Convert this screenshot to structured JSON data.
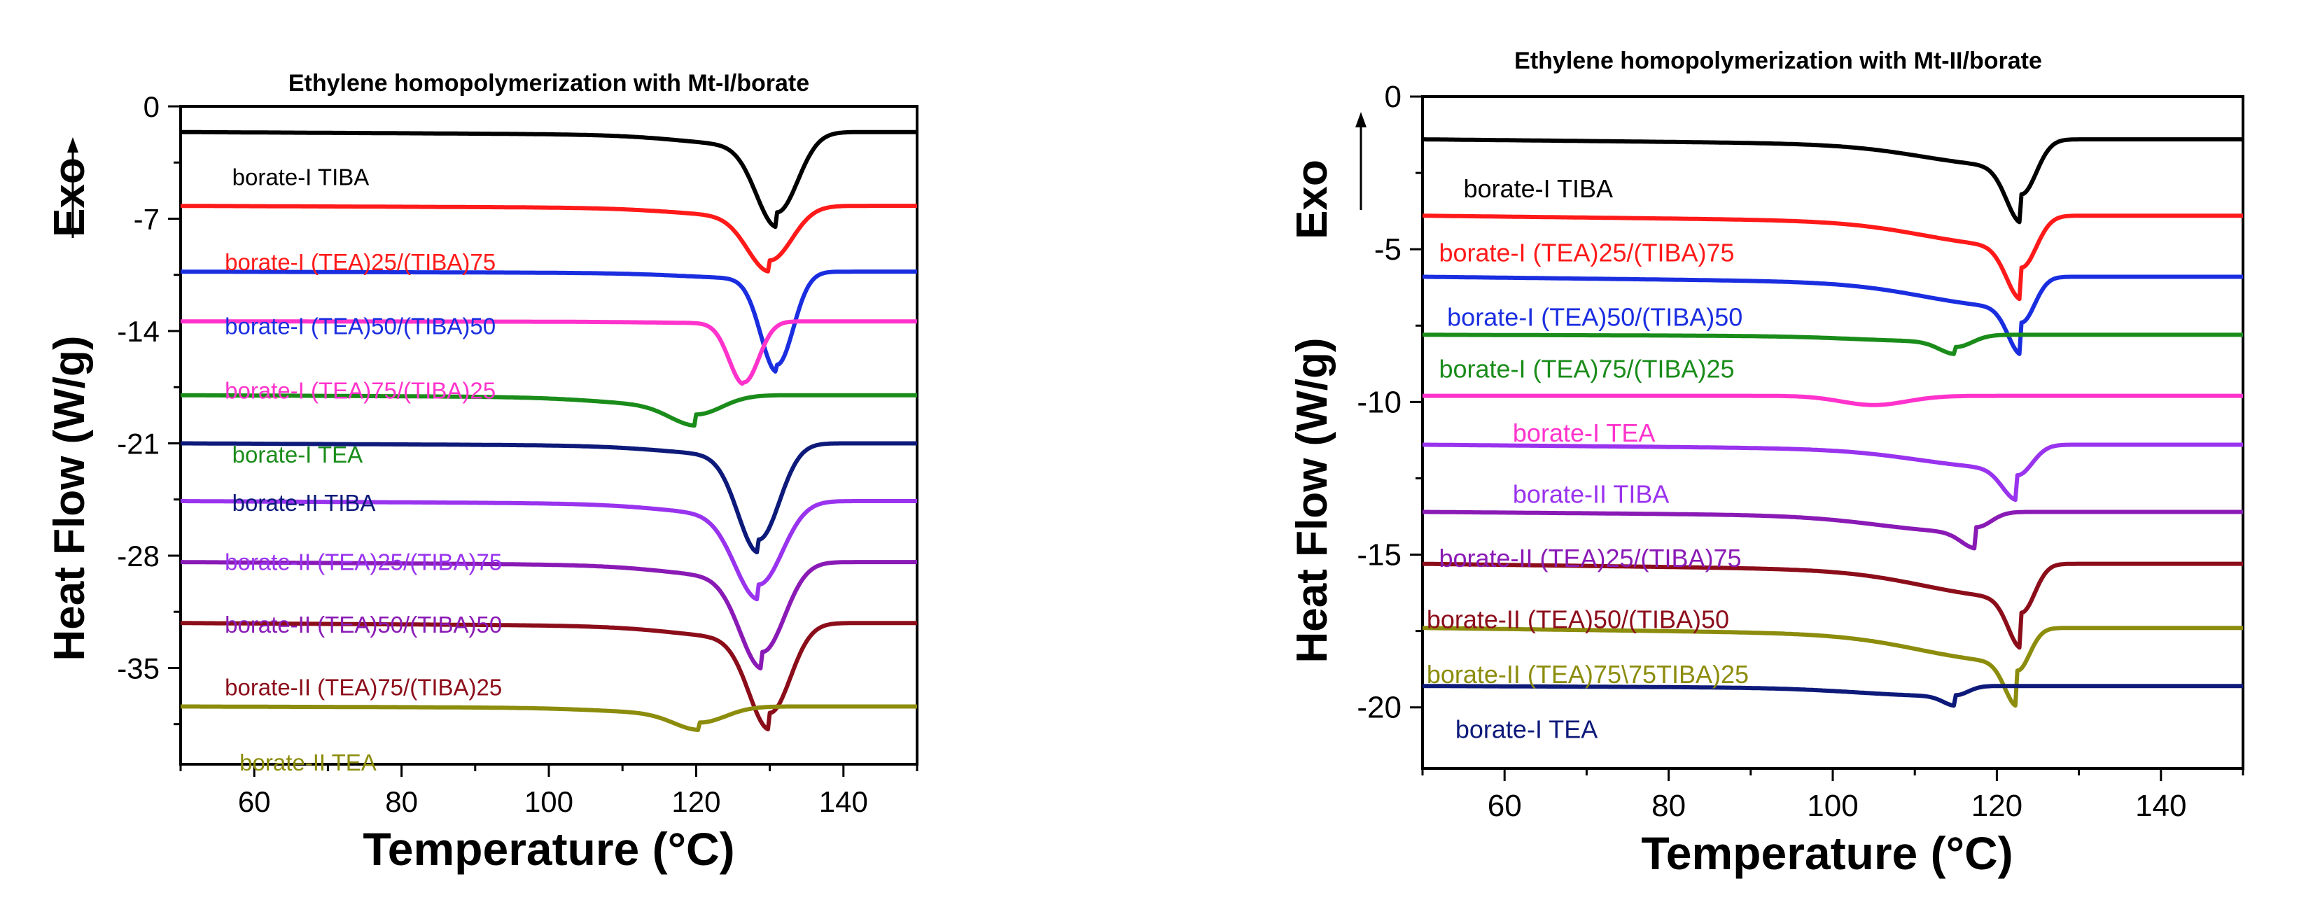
{
  "chart_data": [
    {
      "type": "line",
      "title": "Ethylene homopolymerization with Mt-I/borate",
      "xlabel": "Temperature (°C)",
      "ylabel": "Heat Flow (W/g)",
      "ylabel_exo": "Exo",
      "xlim": [
        50,
        150
      ],
      "ylim": [
        -41,
        0
      ],
      "xticks": [
        60,
        80,
        100,
        120,
        140
      ],
      "yticks": [
        0,
        -7,
        -14,
        -21,
        -28,
        -35
      ],
      "xtick_labels": [
        "60",
        "80",
        "100",
        "120",
        "140"
      ],
      "ytick_labels": [
        "0",
        "-7",
        "-14",
        "-21",
        "-28",
        "-35"
      ],
      "series": [
        {
          "name": "borate-I TIBA",
          "color": "#000000",
          "baseline": -1.6,
          "dip_center": 131,
          "dip_depth": 5.0,
          "dip_width": 2.8,
          "step": 0.8,
          "label_x": 57,
          "label_y": -4.9
        },
        {
          "name": "borate-I (TEA)25/(TIBA)75",
          "color": "#ff1a1a",
          "baseline": -6.2,
          "dip_center": 130,
          "dip_depth": 3.4,
          "dip_width": 3.0,
          "step": 0.6,
          "label_x": 56,
          "label_y": -10.2
        },
        {
          "name": "borate-I (TEA)50/(TIBA)50",
          "color": "#1a2ee0",
          "baseline": -10.3,
          "dip_center": 131,
          "dip_depth": 5.8,
          "dip_width": 2.2,
          "step": 0.4,
          "label_x": 56,
          "label_y": -14.2
        },
        {
          "name": "borate-I (TEA)75/(TIBA)25",
          "color": "#ff33cc",
          "baseline": -13.4,
          "dip_center": 126.5,
          "dip_depth": 3.8,
          "dip_width": 2.0,
          "step": 0.1,
          "label_x": 56,
          "label_y": -18.2
        },
        {
          "name": "borate-I TEA",
          "color": "#1a8c1a",
          "baseline": -18.0,
          "dip_center": 120,
          "dip_depth": 1.2,
          "dip_width": 3.5,
          "step": 0.6,
          "label_x": 57,
          "label_y": -22.2
        },
        {
          "name": "borate-II TIBA",
          "color": "#0d1a7a",
          "baseline": -21.0,
          "dip_center": 128.5,
          "dip_depth": 6.0,
          "dip_width": 2.8,
          "step": 0.7,
          "label_x": 57,
          "label_y": -25.2
        },
        {
          "name": "borate-II (TEA)25/(TIBA)75",
          "color": "#9933ee",
          "baseline": -24.6,
          "dip_center": 128.5,
          "dip_depth": 5.2,
          "dip_width": 3.2,
          "step": 0.8,
          "label_x": 56,
          "label_y": -28.9
        },
        {
          "name": "borate-II (TEA)50/(TIBA)50",
          "color": "#8a1ab5",
          "baseline": -28.4,
          "dip_center": 129,
          "dip_depth": 5.6,
          "dip_width": 3.0,
          "step": 0.9,
          "label_x": 56,
          "label_y": -32.8
        },
        {
          "name": "borate-II (TEA)75/(TIBA)25",
          "color": "#8c0d1a",
          "baseline": -32.2,
          "dip_center": 130,
          "dip_depth": 5.6,
          "dip_width": 2.8,
          "step": 0.9,
          "label_x": 56,
          "label_y": -36.7
        },
        {
          "name": "borate-II TEA",
          "color": "#8c8c0d",
          "baseline": -37.4,
          "dip_center": 120.5,
          "dip_depth": 1.0,
          "dip_width": 3.5,
          "step": 0.4,
          "label_x": 58,
          "label_y": -41.4
        }
      ]
    },
    {
      "type": "line",
      "title": "Ethylene homopolymerization with Mt-II/borate",
      "xlabel": "Temperature (°C)",
      "ylabel": "Heat Flow (W/g)",
      "ylabel_exo": "Exo",
      "xlim": [
        50,
        150
      ],
      "ylim": [
        -22,
        0
      ],
      "xticks": [
        60,
        80,
        100,
        120,
        140
      ],
      "yticks": [
        0,
        -5,
        -10,
        -15,
        -20
      ],
      "xtick_labels": [
        "60",
        "80",
        "100",
        "120",
        "140"
      ],
      "ytick_labels": [
        "0",
        "-5",
        "-10",
        "-15",
        "-20"
      ],
      "series": [
        {
          "name": "borate-I TIBA",
          "color": "#000000",
          "baseline": -1.4,
          "dip_center": 123,
          "dip_depth": 1.8,
          "dip_width": 1.8,
          "step": 0.8,
          "label_x": 55,
          "label_y": -3.3
        },
        {
          "name": "borate-I (TEA)25/(TIBA)75",
          "color": "#ff1a1a",
          "baseline": -3.9,
          "dip_center": 123,
          "dip_depth": 1.7,
          "dip_width": 1.8,
          "step": 0.9,
          "label_x": 52,
          "label_y": -5.4
        },
        {
          "name": "borate-I (TEA)50/(TIBA)50",
          "color": "#1a2ee0",
          "baseline": -5.9,
          "dip_center": 123,
          "dip_depth": 1.5,
          "dip_width": 1.6,
          "step": 0.9,
          "label_x": 53,
          "label_y": -7.5
        },
        {
          "name": "borate-I (TEA)75/(TIBA)25",
          "color": "#1a8c1a",
          "baseline": -7.8,
          "dip_center": 115,
          "dip_depth": 0.4,
          "dip_width": 2.0,
          "step": 0.2,
          "label_x": 52,
          "label_y": -9.2
        },
        {
          "name": "borate-I TEA",
          "color": "#ff33cc",
          "baseline": -9.8,
          "dip_center": 105,
          "dip_depth": 0.3,
          "dip_width": 4.0,
          "step": 0.0,
          "label_x": 61,
          "label_y": -11.3
        },
        {
          "name": "borate-II TIBA",
          "color": "#9933ee",
          "baseline": -11.4,
          "dip_center": 122.5,
          "dip_depth": 1.0,
          "dip_width": 1.8,
          "step": 0.7,
          "label_x": 61,
          "label_y": -13.3
        },
        {
          "name": "borate-II (TEA)25/(TIBA)75",
          "color": "#8a1ab5",
          "baseline": -13.6,
          "dip_center": 117.5,
          "dip_depth": 0.5,
          "dip_width": 1.8,
          "step": 0.6,
          "label_x": 52,
          "label_y": -15.4
        },
        {
          "name": "borate-II (TEA)50/(TIBA)50",
          "color": "#8c0d1a",
          "baseline": -15.3,
          "dip_center": 123,
          "dip_depth": 1.6,
          "dip_width": 1.6,
          "step": 1.0,
          "label_x": 50.5,
          "label_y": -17.4
        },
        {
          "name": "borate-II (TEA)75\\75TIBA)25",
          "color": "#8c8c0d",
          "baseline": -17.4,
          "dip_center": 122.5,
          "dip_depth": 1.4,
          "dip_width": 1.5,
          "step": 1.0,
          "label_x": 50.5,
          "label_y": -19.2
        },
        {
          "name": "borate-I TEA",
          "color": "#0d1a7a",
          "baseline": -19.3,
          "dip_center": 115,
          "dip_depth": 0.3,
          "dip_width": 1.5,
          "step": 0.3,
          "label_x": 54,
          "label_y": -21.0
        }
      ]
    }
  ]
}
